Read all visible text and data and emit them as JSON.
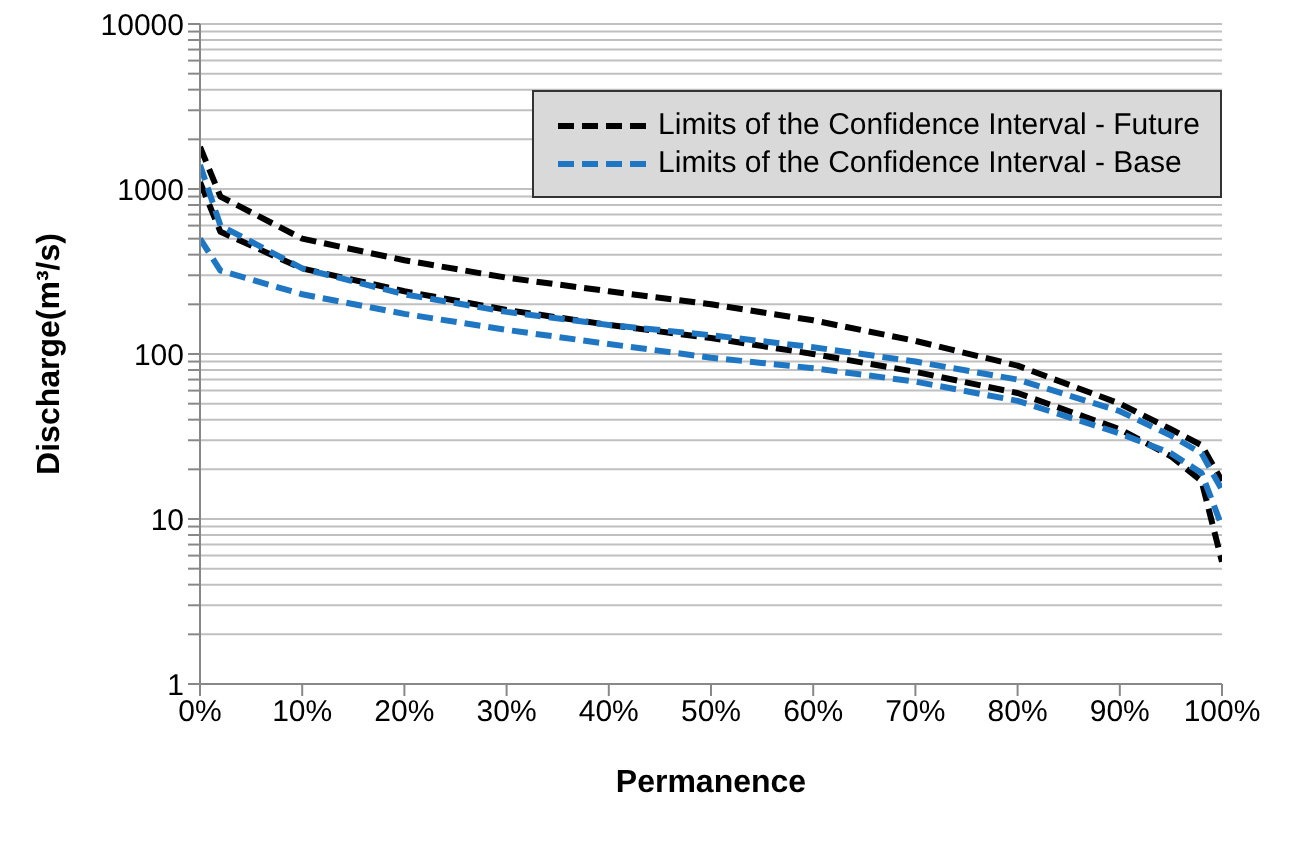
{
  "chart_data": {
    "type": "line",
    "xlabel": "Permanence",
    "ylabel": "Discharge(m³/s)",
    "log": "y",
    "grid": "y",
    "legend": "top right",
    "line_style": "dashed",
    "marker": "none",
    "x": [
      0,
      2,
      10,
      20,
      30,
      40,
      50,
      60,
      70,
      80,
      90,
      95,
      98,
      100
    ],
    "xlim": [
      0,
      100
    ],
    "xticks": [
      {
        "value": 0,
        "label": "0%"
      },
      {
        "value": 10,
        "label": "10%"
      },
      {
        "value": 20,
        "label": "20%"
      },
      {
        "value": 30,
        "label": "30%"
      },
      {
        "value": 40,
        "label": "40%"
      },
      {
        "value": 50,
        "label": "50%"
      },
      {
        "value": 60,
        "label": "60%"
      },
      {
        "value": 70,
        "label": "70%"
      },
      {
        "value": 80,
        "label": "80%"
      },
      {
        "value": 90,
        "label": "90%"
      },
      {
        "value": 100,
        "label": "100%"
      }
    ],
    "ylim": [
      1,
      10000
    ],
    "yticks": [
      1,
      {
        "value": 2,
        "label": null
      },
      {
        "value": 3,
        "label": null
      },
      {
        "value": 4,
        "label": null
      },
      {
        "value": 5,
        "label": null
      },
      {
        "value": 6,
        "label": null
      },
      {
        "value": 7,
        "label": null
      },
      {
        "value": 8,
        "label": null
      },
      {
        "value": 9,
        "label": null
      },
      10,
      {
        "value": 20,
        "label": null
      },
      {
        "value": 30,
        "label": null
      },
      {
        "value": 40,
        "label": null
      },
      {
        "value": 50,
        "label": null
      },
      {
        "value": 60,
        "label": null
      },
      {
        "value": 70,
        "label": null
      },
      {
        "value": 80,
        "label": null
      },
      {
        "value": 90,
        "label": null
      },
      100,
      {
        "value": 200,
        "label": null
      },
      {
        "value": 300,
        "label": null
      },
      {
        "value": 400,
        "label": null
      },
      {
        "value": 500,
        "label": null
      },
      {
        "value": 600,
        "label": null
      },
      {
        "value": 700,
        "label": null
      },
      {
        "value": 800,
        "label": null
      },
      {
        "value": 900,
        "label": null
      },
      1000,
      {
        "value": 2000,
        "label": null
      },
      {
        "value": 3000,
        "label": null
      },
      {
        "value": 4000,
        "label": null
      },
      {
        "value": 5000,
        "label": null
      },
      {
        "value": 6000,
        "label": null
      },
      {
        "value": 7000,
        "label": null
      },
      {
        "value": 8000,
        "label": null
      },
      {
        "value": 9000,
        "label": null
      },
      10000
    ],
    "series": [
      {
        "name": "Limits of the Confidence Interval - Future",
        "color": "#000000",
        "values": [
          1800,
          900,
          500,
          370,
          290,
          240,
          200,
          160,
          120,
          85,
          50,
          35,
          28,
          17
        ]
      },
      {
        "color": "#000000",
        "values": [
          1100,
          550,
          330,
          240,
          185,
          150,
          125,
          100,
          78,
          58,
          35,
          24,
          17,
          5.5
        ]
      },
      {
        "name": "Limits of the Confidence Interval - Base",
        "color": "#1f77c4",
        "values": [
          1400,
          600,
          330,
          230,
          180,
          150,
          130,
          110,
          90,
          70,
          45,
          32,
          25,
          15
        ]
      },
      {
        "color": "#1f77c4",
        "values": [
          500,
          320,
          230,
          175,
          140,
          115,
          95,
          82,
          68,
          52,
          33,
          25,
          19,
          9
        ]
      }
    ]
  }
}
